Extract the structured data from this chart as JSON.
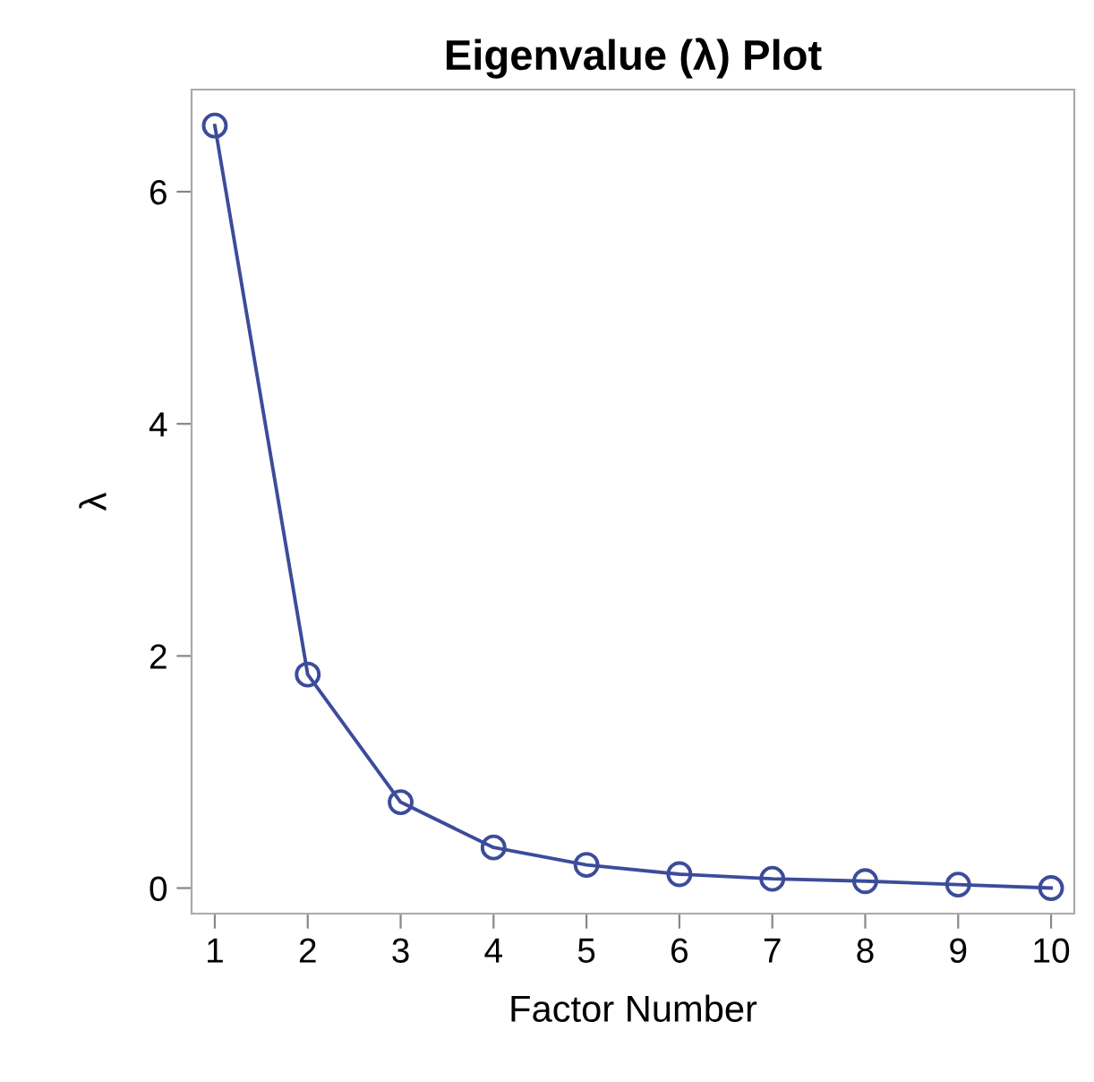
{
  "chart_data": {
    "type": "line",
    "title": "Eigenvalue (λ) Plot",
    "xlabel": "Factor Number",
    "ylabel": "λ",
    "x": [
      1,
      2,
      3,
      4,
      5,
      6,
      7,
      8,
      9,
      10
    ],
    "series": [
      {
        "color": "#3c4c9a",
        "values": [
          6.57,
          1.84,
          0.74,
          0.35,
          0.2,
          0.12,
          0.08,
          0.06,
          0.03,
          0.0
        ]
      }
    ],
    "xlim": [
      0.75,
      10.25
    ],
    "xticks": [
      1,
      2,
      3,
      4,
      5,
      6,
      7,
      8,
      9,
      10
    ],
    "ylim": [
      -0.22,
      6.88
    ],
    "yticks": [
      0,
      2,
      4,
      6
    ],
    "marker": "circle",
    "line_style": "solid",
    "grid": false,
    "legend": false
  }
}
